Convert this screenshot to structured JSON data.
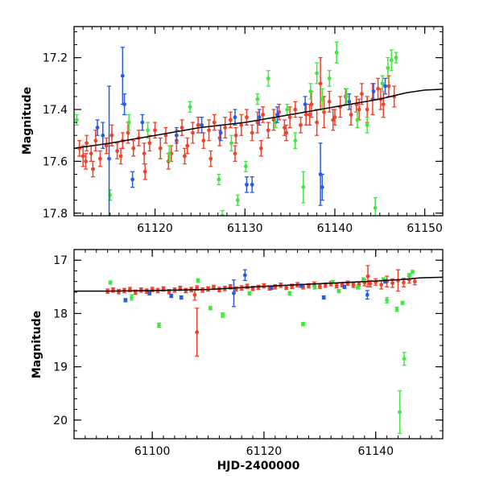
{
  "colors": {
    "red": "#f0412a",
    "green": "#3ee83e",
    "blue": "#2a5ce0",
    "model": "#000000",
    "frame": "#000000"
  },
  "chart_data": [
    {
      "id": "top",
      "type": "scatter",
      "title": "",
      "xlabel": "",
      "ylabel": "Magnitude",
      "xlim": [
        61111,
        61152
      ],
      "ylim": [
        17.81,
        17.08
      ],
      "y_inverted": true,
      "xticks": [
        61120,
        61130,
        61140,
        61150
      ],
      "xtick_labels": [
        "61120",
        "61130",
        "61140",
        "61150"
      ],
      "yticks": [
        17.2,
        17.4,
        17.6,
        17.8
      ],
      "ytick_labels": [
        "17.2",
        "17.4",
        "17.6",
        "17.8"
      ],
      "x_minor_step": 1,
      "y_minor_step": 0.05,
      "model_curve": {
        "x": [
          61111,
          61115,
          61120,
          61125,
          61130,
          61135,
          61140,
          61145,
          61148,
          61150,
          61152
        ],
        "y": [
          17.55,
          17.53,
          17.5,
          17.47,
          17.45,
          17.42,
          17.39,
          17.36,
          17.335,
          17.325,
          17.322
        ]
      },
      "series": [
        {
          "name": "red",
          "color_key": "red",
          "x": [
            61111.6,
            61112.0,
            61112.4,
            61112.9,
            61113.4,
            61113.9,
            61114.6,
            61115.2,
            61115.8,
            61116.4,
            61117.0,
            61117.6,
            61118.2,
            61118.8,
            61119.4,
            61120.0,
            61120.6,
            61121.2,
            61121.8,
            61122.4,
            61123.0,
            61123.6,
            61124.2,
            61124.8,
            61125.4,
            61126.0,
            61126.6,
            61127.2,
            61127.8,
            61128.4,
            61129.0,
            61129.6,
            61130.2,
            61130.8,
            61131.4,
            61132.0,
            61132.6,
            61133.2,
            61133.8,
            61134.4,
            61135.0,
            61135.6,
            61136.2,
            61136.8,
            61137.4,
            61138.0,
            61138.4,
            61138.8,
            61139.4,
            61140.0,
            61140.6,
            61141.2,
            61141.8,
            61142.4,
            61143.0,
            61143.6,
            61144.2,
            61144.8,
            61145.4,
            61146.0,
            61146.6,
            61112.3,
            61113.1,
            61116.2,
            61118.9,
            61121.5,
            61123.3,
            61126.2,
            61128.9,
            61131.8,
            61134.6,
            61137.2,
            61139.8,
            61142.7,
            61145.1
          ],
          "y": [
            17.55,
            17.58,
            17.53,
            17.57,
            17.52,
            17.59,
            17.54,
            17.5,
            17.56,
            17.52,
            17.49,
            17.55,
            17.51,
            17.57,
            17.53,
            17.48,
            17.55,
            17.5,
            17.57,
            17.52,
            17.47,
            17.54,
            17.49,
            17.46,
            17.52,
            17.48,
            17.45,
            17.51,
            17.47,
            17.44,
            17.5,
            17.46,
            17.43,
            17.49,
            17.45,
            17.42,
            17.48,
            17.44,
            17.41,
            17.47,
            17.43,
            17.4,
            17.46,
            17.42,
            17.38,
            17.45,
            17.3,
            17.41,
            17.37,
            17.43,
            17.39,
            17.35,
            17.42,
            17.38,
            17.34,
            17.4,
            17.36,
            17.32,
            17.38,
            17.31,
            17.35,
            17.6,
            17.63,
            17.58,
            17.64,
            17.6,
            17.58,
            17.59,
            17.57,
            17.55,
            17.49,
            17.42,
            17.44,
            17.4,
            17.36
          ],
          "err": [
            0.03,
            0.04,
            0.03,
            0.03,
            0.04,
            0.03,
            0.03,
            0.04,
            0.03,
            0.03,
            0.04,
            0.03,
            0.03,
            0.04,
            0.03,
            0.03,
            0.04,
            0.03,
            0.03,
            0.04,
            0.03,
            0.03,
            0.04,
            0.03,
            0.03,
            0.04,
            0.03,
            0.03,
            0.04,
            0.03,
            0.03,
            0.04,
            0.03,
            0.03,
            0.04,
            0.03,
            0.03,
            0.04,
            0.03,
            0.03,
            0.04,
            0.03,
            0.03,
            0.04,
            0.05,
            0.05,
            0.1,
            0.06,
            0.04,
            0.03,
            0.04,
            0.03,
            0.04,
            0.03,
            0.04,
            0.05,
            0.06,
            0.04,
            0.05,
            0.04,
            0.04,
            0.03,
            0.03,
            0.03,
            0.03,
            0.03,
            0.03,
            0.03,
            0.03,
            0.03,
            0.03,
            0.04,
            0.04,
            0.04,
            0.04
          ]
        },
        {
          "name": "green",
          "color_key": "green",
          "x": [
            61111.3,
            61115.0,
            61117.1,
            61119.2,
            61121.6,
            61123.9,
            61127.1,
            61127.5,
            61128.5,
            61129.2,
            61130.1,
            61131.4,
            61132.6,
            61133.4,
            61134.7,
            61135.6,
            61136.5,
            61137.3,
            61138.0,
            61138.6,
            61139.4,
            61140.2,
            61141.3,
            61142.5,
            61143.6,
            61144.5,
            61145.3,
            61145.9,
            61146.3,
            61146.8
          ],
          "y": [
            17.44,
            17.73,
            17.45,
            17.48,
            17.57,
            17.39,
            17.67,
            17.81,
            17.53,
            17.75,
            17.62,
            17.36,
            17.28,
            17.45,
            17.4,
            17.52,
            17.7,
            17.33,
            17.26,
            17.36,
            17.28,
            17.18,
            17.35,
            17.44,
            17.46,
            17.78,
            17.3,
            17.24,
            17.21,
            17.2
          ],
          "err": [
            0.02,
            0.02,
            0.03,
            0.03,
            0.03,
            0.02,
            0.02,
            0.02,
            0.03,
            0.02,
            0.02,
            0.02,
            0.03,
            0.02,
            0.02,
            0.03,
            0.06,
            0.03,
            0.04,
            0.04,
            0.03,
            0.04,
            0.03,
            0.03,
            0.03,
            0.04,
            0.03,
            0.04,
            0.04,
            0.02
          ]
        },
        {
          "name": "blue",
          "color_key": "blue",
          "x": [
            61113.6,
            61114.2,
            61114.9,
            61116.4,
            61116.6,
            61117.5,
            61118.6,
            61122.4,
            61125.2,
            61127.3,
            61128.9,
            61130.2,
            61130.8,
            61131.6,
            61133.6,
            61136.7,
            61138.4,
            61138.6,
            61141.6,
            61144.3,
            61145.6
          ],
          "y": [
            17.47,
            17.5,
            17.59,
            17.27,
            17.38,
            17.67,
            17.45,
            17.5,
            17.46,
            17.49,
            17.43,
            17.69,
            17.69,
            17.43,
            17.42,
            17.38,
            17.65,
            17.7,
            17.37,
            17.33,
            17.31
          ],
          "err": [
            0.03,
            0.05,
            0.28,
            0.11,
            0.04,
            0.03,
            0.03,
            0.03,
            0.03,
            0.03,
            0.03,
            0.03,
            0.03,
            0.03,
            0.03,
            0.03,
            0.12,
            0.05,
            0.03,
            0.03,
            0.03
          ]
        }
      ]
    },
    {
      "id": "bottom",
      "type": "scatter",
      "title": "",
      "xlabel": "HJD-2400000",
      "ylabel": "Magnitude",
      "xlim": [
        61086,
        61152
      ],
      "ylim": [
        20.35,
        16.8
      ],
      "y_inverted": true,
      "xticks": [
        61100,
        61120,
        61140
      ],
      "xtick_labels": [
        "61100",
        "61120",
        "61140"
      ],
      "yticks": [
        17,
        18,
        19,
        20
      ],
      "ytick_labels": [
        "17",
        "18",
        "19",
        "20"
      ],
      "x_minor_step": 2,
      "y_minor_step": 0.2,
      "model_curve": {
        "x": [
          61086,
          61092,
          61100,
          61110,
          61120,
          61130,
          61140,
          61145,
          61148,
          61152
        ],
        "y": [
          17.58,
          17.58,
          17.57,
          17.55,
          17.49,
          17.44,
          17.39,
          17.36,
          17.33,
          17.32
        ]
      },
      "series": [
        {
          "name": "red",
          "color_key": "red",
          "x": [
            61092,
            61093,
            61094,
            61095,
            61096,
            61097,
            61098,
            61099,
            61100,
            61101,
            61102,
            61103,
            61104,
            61105,
            61106,
            61107,
            61108,
            61109,
            61110,
            61111,
            61112,
            61113,
            61114,
            61115,
            61116,
            61117,
            61118,
            61119,
            61120,
            61121,
            61122,
            61123,
            61124,
            61125,
            61126,
            61127,
            61128,
            61129,
            61130,
            61131,
            61132,
            61133,
            61134,
            61135,
            61136,
            61137,
            61138,
            61138.6,
            61139,
            61140,
            61141,
            61142,
            61143,
            61144,
            61145,
            61146,
            61147,
            61107.6,
            61108.0
          ],
          "y": [
            17.58,
            17.56,
            17.59,
            17.57,
            17.55,
            17.6,
            17.56,
            17.58,
            17.55,
            17.57,
            17.54,
            17.59,
            17.56,
            17.53,
            17.57,
            17.55,
            17.52,
            17.56,
            17.54,
            17.51,
            17.55,
            17.53,
            17.5,
            17.54,
            17.52,
            17.49,
            17.53,
            17.51,
            17.48,
            17.52,
            17.5,
            17.47,
            17.51,
            17.49,
            17.46,
            17.5,
            17.48,
            17.45,
            17.49,
            17.47,
            17.44,
            17.48,
            17.46,
            17.43,
            17.47,
            17.45,
            17.42,
            17.3,
            17.44,
            17.41,
            17.46,
            17.4,
            17.43,
            17.38,
            17.42,
            17.37,
            17.4,
            17.65,
            18.35
          ],
          "err": [
            0.04,
            0.04,
            0.04,
            0.04,
            0.04,
            0.04,
            0.04,
            0.04,
            0.04,
            0.04,
            0.04,
            0.04,
            0.04,
            0.04,
            0.04,
            0.04,
            0.04,
            0.04,
            0.04,
            0.04,
            0.04,
            0.04,
            0.04,
            0.04,
            0.04,
            0.04,
            0.04,
            0.04,
            0.04,
            0.04,
            0.04,
            0.04,
            0.04,
            0.04,
            0.04,
            0.04,
            0.04,
            0.04,
            0.04,
            0.04,
            0.04,
            0.04,
            0.04,
            0.04,
            0.04,
            0.04,
            0.06,
            0.2,
            0.06,
            0.06,
            0.08,
            0.1,
            0.08,
            0.2,
            0.08,
            0.06,
            0.06,
            0.1,
            0.45
          ]
        },
        {
          "name": "green",
          "color_key": "green",
          "x": [
            61092.5,
            61096.3,
            61101.2,
            61108.2,
            61110.4,
            61112.6,
            61117.4,
            61124.6,
            61127.0,
            61129.1,
            61132.3,
            61133.4,
            61136.8,
            61137.8,
            61141.4,
            61142.0,
            61143.8,
            61144.3,
            61144.8,
            61145.1,
            61146.0,
            61146.6
          ],
          "y": [
            17.42,
            17.7,
            18.22,
            17.38,
            17.9,
            18.03,
            17.62,
            17.62,
            18.2,
            17.51,
            17.41,
            17.58,
            17.51,
            17.36,
            17.36,
            17.75,
            17.92,
            19.85,
            17.8,
            18.85,
            17.28,
            17.22
          ],
          "err": [
            0.03,
            0.05,
            0.04,
            0.03,
            0.03,
            0.04,
            0.03,
            0.03,
            0.03,
            0.03,
            0.03,
            0.03,
            0.03,
            0.03,
            0.03,
            0.05,
            0.04,
            0.4,
            0.03,
            0.12,
            0.03,
            0.03
          ]
        },
        {
          "name": "blue",
          "color_key": "blue",
          "x": [
            61095.2,
            61099.5,
            61103.4,
            61105.2,
            61114.6,
            61116.6,
            61121.3,
            61126.7,
            61130.7,
            61134.4,
            61138.5,
            61141.7
          ],
          "y": [
            17.75,
            17.62,
            17.67,
            17.7,
            17.62,
            17.28,
            17.52,
            17.48,
            17.7,
            17.5,
            17.65,
            17.4
          ],
          "err": [
            0.03,
            0.03,
            0.03,
            0.03,
            0.25,
            0.1,
            0.03,
            0.03,
            0.03,
            0.03,
            0.08,
            0.03
          ]
        }
      ]
    }
  ]
}
